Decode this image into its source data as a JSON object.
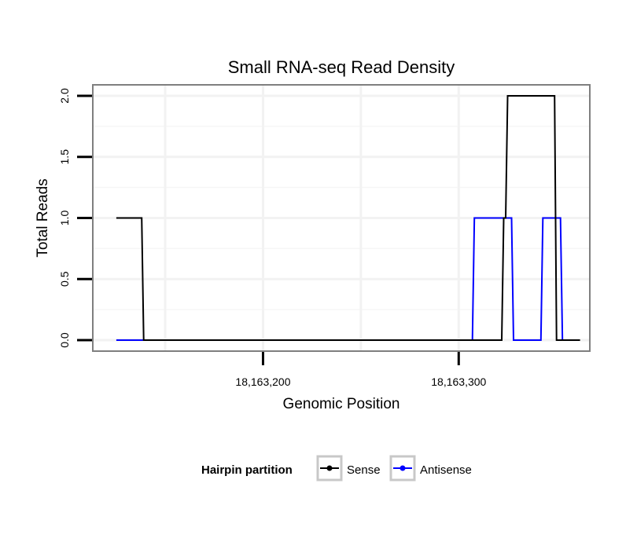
{
  "chart_data": {
    "type": "line",
    "title": "Small RNA-seq Read Density",
    "xlabel": "Genomic Position",
    "ylabel": "Total Reads",
    "xlim": [
      18163113,
      18163367
    ],
    "ylim": [
      -0.09,
      2.09
    ],
    "xticks": [
      {
        "value": 18163200,
        "label": "18,163,200"
      },
      {
        "value": 18163300,
        "label": "18,163,300"
      }
    ],
    "yticks": [
      {
        "value": 0.0,
        "label": "0.0"
      },
      {
        "value": 0.5,
        "label": "0.5"
      },
      {
        "value": 1.0,
        "label": "1.0"
      },
      {
        "value": 1.5,
        "label": "1.5"
      },
      {
        "value": 2.0,
        "label": "2.0"
      }
    ],
    "grid": true,
    "legend": {
      "title": "Hairpin partition",
      "position": "bottom"
    },
    "series": [
      {
        "name": "Sense",
        "color": "#000000",
        "x": [
          18163125,
          18163138,
          18163139,
          18163322,
          18163323,
          18163324,
          18163325,
          18163349,
          18163350,
          18163362
        ],
        "y": [
          1,
          1,
          0,
          0,
          1,
          1,
          2,
          2,
          0,
          0
        ]
      },
      {
        "name": "Antisense",
        "color": "#0000ff",
        "x": [
          18163125,
          18163139,
          18163307,
          18163308,
          18163327,
          18163328,
          18163342,
          18163343,
          18163352,
          18163353
        ],
        "y": [
          0,
          0,
          0,
          1,
          1,
          0,
          0,
          1,
          1,
          0
        ]
      }
    ]
  }
}
